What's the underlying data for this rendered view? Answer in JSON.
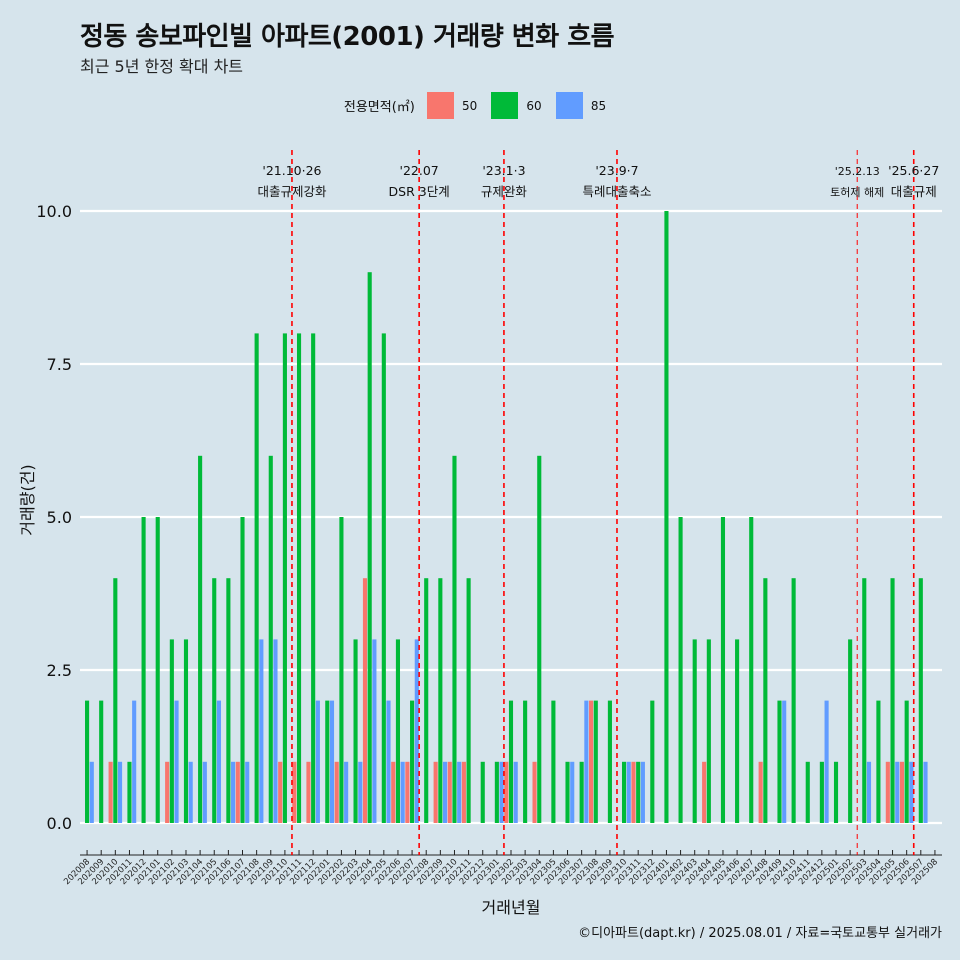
{
  "title": "정동 송보파인빌 아파트(2001) 거래량 변화 흐름",
  "subtitle": "최근 5년 한정 확대 차트",
  "caption": "©디아파트(dapt.kr) / 2025.08.01 / 자료=국토교통부 실거래가",
  "colors": {
    "background": "#d6e4ec",
    "s50": "#f8766d",
    "s60": "#00ba38",
    "s85": "#619cff",
    "vline": "#ff0000"
  },
  "chart_data": {
    "type": "bar",
    "xlabel": "거래년월",
    "ylabel": "거래량(건)",
    "ylim": [
      0,
      10.5
    ],
    "yticks": [
      "0.0",
      "2.5",
      "5.0",
      "7.5",
      "10.0"
    ],
    "ytick_values": [
      0,
      2.5,
      5,
      7.5,
      10
    ],
    "legend_title": "전용면적(㎡)",
    "legend_position": "top",
    "categories": [
      "202008",
      "202009",
      "202010",
      "202011",
      "202012",
      "202101",
      "202102",
      "202103",
      "202104",
      "202105",
      "202106",
      "202107",
      "202108",
      "202109",
      "202110",
      "202111",
      "202112",
      "202201",
      "202202",
      "202203",
      "202204",
      "202205",
      "202206",
      "202207",
      "202208",
      "202209",
      "202210",
      "202211",
      "202212",
      "202301",
      "202302",
      "202303",
      "202304",
      "202305",
      "202306",
      "202307",
      "202308",
      "202309",
      "202310",
      "202311",
      "202312",
      "202401",
      "202402",
      "202403",
      "202404",
      "202405",
      "202406",
      "202407",
      "202408",
      "202409",
      "202410",
      "202411",
      "202412",
      "202501",
      "202502",
      "202503",
      "202504",
      "202505",
      "202506",
      "202507",
      "202508"
    ],
    "series": [
      {
        "name": "50",
        "values": [
          0,
          0,
          1,
          0,
          0,
          0,
          1,
          0,
          0,
          0,
          0,
          1,
          0,
          0,
          1,
          1,
          1,
          0,
          1,
          0,
          4,
          0,
          1,
          1,
          0,
          1,
          1,
          1,
          0,
          0,
          1,
          0,
          1,
          0,
          0,
          0,
          2,
          0,
          0,
          1,
          0,
          0,
          0,
          0,
          1,
          0,
          0,
          0,
          1,
          0,
          0,
          0,
          0,
          0,
          0,
          0,
          0,
          1,
          1,
          0,
          0
        ]
      },
      {
        "name": "60",
        "values": [
          2,
          2,
          4,
          1,
          5,
          5,
          3,
          3,
          6,
          4,
          4,
          5,
          8,
          6,
          8,
          8,
          8,
          2,
          5,
          3,
          9,
          8,
          3,
          2,
          4,
          4,
          6,
          4,
          1,
          1,
          2,
          2,
          6,
          2,
          1,
          1,
          2,
          2,
          1,
          1,
          2,
          10,
          5,
          3,
          3,
          5,
          3,
          5,
          4,
          2,
          4,
          1,
          1,
          1,
          3,
          4,
          2,
          4,
          2,
          4,
          0
        ]
      },
      {
        "name": "85",
        "values": [
          1,
          0,
          1,
          2,
          0,
          0,
          2,
          1,
          1,
          2,
          1,
          1,
          3,
          3,
          0,
          0,
          2,
          2,
          1,
          1,
          3,
          2,
          1,
          3,
          0,
          1,
          1,
          0,
          0,
          1,
          1,
          0,
          0,
          0,
          1,
          2,
          0,
          0,
          1,
          1,
          0,
          0,
          0,
          0,
          0,
          0,
          0,
          0,
          0,
          2,
          0,
          0,
          2,
          0,
          0,
          1,
          0,
          1,
          1,
          1,
          0
        ]
      }
    ],
    "events": [
      {
        "index": 14.5,
        "date": "'21.10·26",
        "label": "대출규제강화",
        "dashed": true
      },
      {
        "index": 23.5,
        "date": "'22.07",
        "label": "DSR 3단계",
        "dashed": true
      },
      {
        "index": 29.5,
        "date": "'23.1·3",
        "label": "규제완화",
        "dashed": true
      },
      {
        "index": 37.5,
        "date": "'23.9·7",
        "label": "특례대출축소",
        "dashed": true
      },
      {
        "index": 54.5,
        "date": "'25.2.13",
        "label": "토허제 해제",
        "dashed": true,
        "thin": true
      },
      {
        "index": 58.5,
        "date": "'25.6·27",
        "label": "대출규제",
        "dashed": true
      }
    ]
  }
}
